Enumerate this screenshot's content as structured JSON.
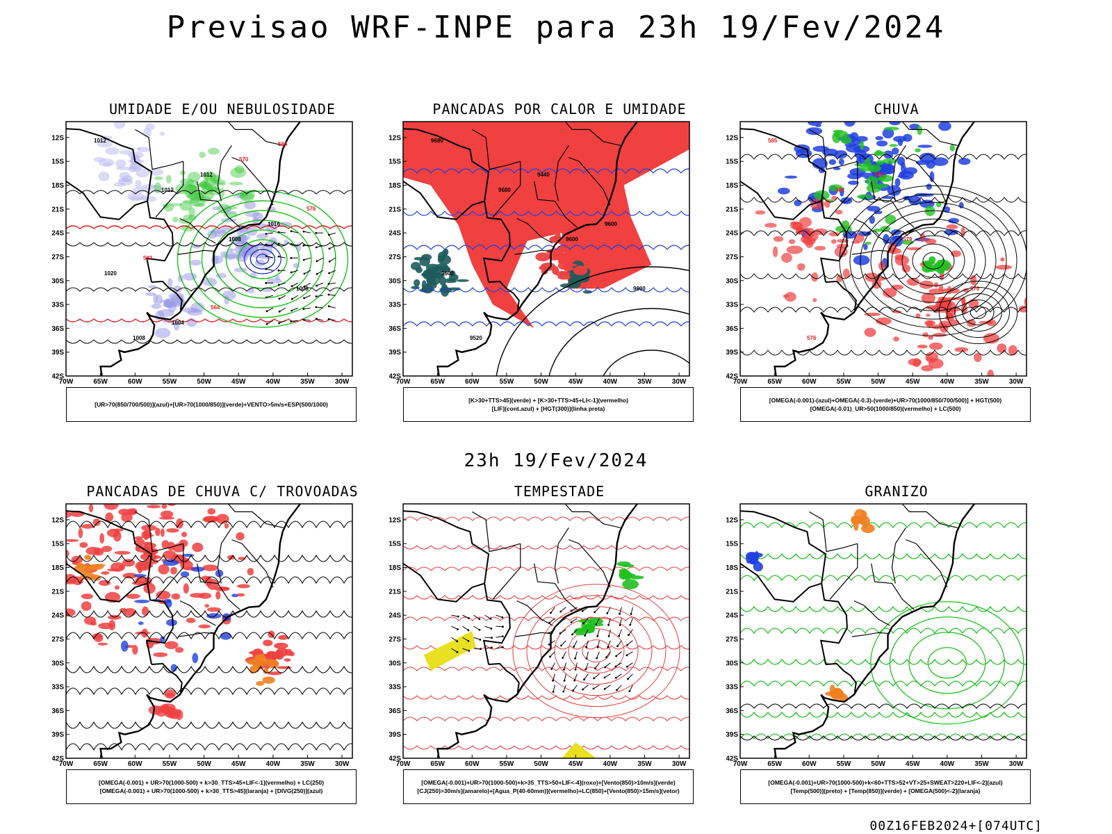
{
  "main_title": "Previsao WRF-INPE  para 23h 19/Fev/2024",
  "sub_title": "23h 19/Fev/2024",
  "footer": "00Z16FEB2024+[074UTC]",
  "lat_ticks": [
    "12S",
    "15S",
    "18S",
    "21S",
    "24S",
    "27S",
    "30S",
    "33S",
    "36S",
    "39S",
    "42S"
  ],
  "lon_ticks": [
    "70W",
    "65W",
    "60W",
    "55W",
    "50W",
    "45W",
    "40W",
    "35W",
    "30W"
  ],
  "panels": [
    {
      "title": "UMIDADE E/OU NEBULOSIDADE",
      "legend": [
        "[UR>70(850/700/500)](azul)+[UR>70(1000/850)](verde)+VENTO>5m/s+ESP(500/1000)"
      ],
      "labels": [
        "1012",
        "1012",
        "1008",
        "1008",
        "1008",
        "1012",
        "1016",
        "1020",
        "1004",
        "570",
        "576",
        "582",
        "564",
        "584"
      ]
    },
    {
      "title": "PANCADAS POR CALOR E UMIDADE",
      "legend": [
        "[K>30+TTS>45](verde) + [K>30+TTS>45+LI<-1](vermelho)",
        "[LIF](cont.azul) + [HGT(300)](linha preta)"
      ],
      "labels": [
        "9680",
        "9680",
        "9600",
        "9600",
        "9520",
        "9440",
        "9600",
        "9600"
      ]
    },
    {
      "title": "CHUVA",
      "legend": [
        "[OMEGA(-0.001)-(azul)+OMEGA(-0.3)-(verde)+UR>70(1000/850/700/500)] + HGT(500)",
        "[OMEGA(-0.01)_UR>50(1000/850)(vermelho) + LC(500)"
      ],
      "labels": [
        "585",
        "582",
        "579",
        "576",
        "576",
        "585"
      ]
    },
    {
      "title": "PANCADAS DE CHUVA C/ TROVOADAS",
      "legend": [
        "[OMEGA(-0.001) + UR>70(1000-500) + k>30_TTS>45+LIF<-1](vermelho) + LC(250)",
        "[OMEGA(-0.001) + UR>70(1000-500) + k>30_TTS>45](laranja) + [DIVG(250)](azul)"
      ],
      "labels": []
    },
    {
      "title": "TEMPESTADE",
      "legend": [
        "[OMEGA(-0.001)+UR>70(1000-500)+k>35_TTS>50+LIF<-4](roxo)+[Vento(850)>10m/s](verde)",
        "[CJ(250)>30m/s](amarelo)+[Agua_P(40-60mm)](vermelho)+LC(850)+[Vento(850)>15m/s](vetor)"
      ],
      "labels": []
    },
    {
      "title": "GRANIZO",
      "legend": [
        "[OMEGA(-0.001)+UR>70(1000-500)+k<60+TTS>52+VT>25+SWEAT>220+LIF<-2](azul)",
        "[Temp(500)](preto) + [Temp(850)](verde) + [OMEGA(500)<-2](laranja)"
      ],
      "labels": []
    }
  ]
}
